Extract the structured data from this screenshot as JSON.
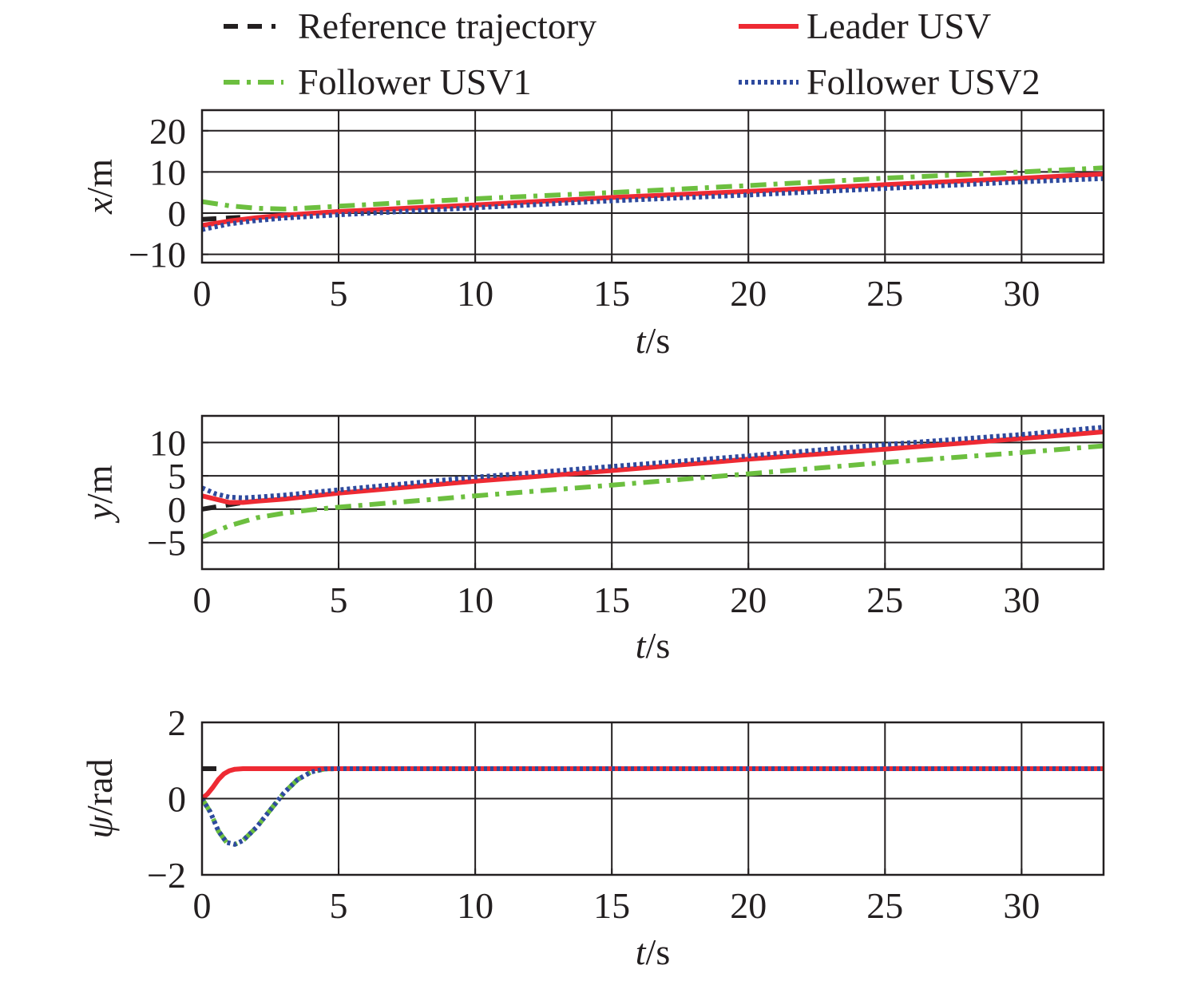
{
  "legend": [
    {
      "key": "reference",
      "label": "Reference trajectory",
      "color": "#231f20",
      "style": "dashed"
    },
    {
      "key": "leader",
      "label": "Leader USV",
      "color": "#ee2a33",
      "style": "solid"
    },
    {
      "key": "follower1",
      "label": "Follower USV1",
      "color": "#6cbf3f",
      "style": "dashdot"
    },
    {
      "key": "follower2",
      "label": "Follower USV2",
      "color": "#2e4a9e",
      "style": "dotted"
    }
  ],
  "chart_data": [
    {
      "type": "line",
      "ylabel_var": "x",
      "ylabel_unit": "/m",
      "xlabel_var": "t",
      "xlabel_unit": "/s",
      "xlim": [
        0,
        33
      ],
      "ylim": [
        -12,
        25
      ],
      "xticks": [
        0,
        5,
        10,
        15,
        20,
        25,
        30
      ],
      "yticks": [
        20,
        10,
        0,
        -10
      ],
      "ytick_labels": [
        "20",
        "10",
        "0",
        "−10"
      ],
      "grid": true,
      "series": [
        {
          "name": "Reference trajectory",
          "x": [
            0,
            1.5
          ],
          "y": [
            -1.5,
            -1.0
          ]
        },
        {
          "name": "Leader USV",
          "x": [
            0,
            1,
            2,
            3,
            5,
            10,
            15,
            20,
            25,
            30,
            33
          ],
          "y": [
            -3,
            -1.9,
            -1.1,
            -0.5,
            0.4,
            2.0,
            3.8,
            5.3,
            6.9,
            8.5,
            9.5
          ]
        },
        {
          "name": "Follower USV1",
          "x": [
            0,
            1,
            2,
            3,
            4,
            5,
            10,
            15,
            20,
            25,
            30,
            33
          ],
          "y": [
            2.8,
            1.8,
            1.2,
            1.0,
            1.3,
            1.7,
            3.5,
            5.0,
            6.7,
            8.5,
            10.0,
            11.0
          ]
        },
        {
          "name": "Follower USV2",
          "x": [
            0,
            1,
            2,
            3,
            5,
            10,
            15,
            20,
            25,
            30,
            33
          ],
          "y": [
            -4,
            -2.6,
            -1.8,
            -1.2,
            -0.4,
            1.3,
            3.0,
            4.4,
            6.0,
            7.6,
            8.4
          ]
        }
      ]
    },
    {
      "type": "line",
      "ylabel_var": "y",
      "ylabel_unit": "/m",
      "xlabel_var": "t",
      "xlabel_unit": "/s",
      "xlim": [
        0,
        33
      ],
      "ylim": [
        -9,
        14
      ],
      "xticks": [
        0,
        5,
        10,
        15,
        20,
        25,
        30
      ],
      "yticks": [
        10,
        5,
        0,
        -5
      ],
      "ytick_labels": [
        "10",
        "5",
        "0",
        "−5"
      ],
      "grid": true,
      "series": [
        {
          "name": "Reference trajectory",
          "x": [
            0,
            1.5
          ],
          "y": [
            0,
            1.0
          ]
        },
        {
          "name": "Leader USV",
          "x": [
            0,
            0.5,
            1,
            1.5,
            2,
            3,
            5,
            10,
            15,
            20,
            25,
            30,
            33
          ],
          "y": [
            2.0,
            1.5,
            1.0,
            1.0,
            1.2,
            1.5,
            2.4,
            4.2,
            5.8,
            7.5,
            9.0,
            10.6,
            11.6
          ]
        },
        {
          "name": "Follower USV1",
          "x": [
            0,
            1,
            2,
            3,
            4,
            5,
            10,
            15,
            20,
            25,
            30,
            33
          ],
          "y": [
            -4.2,
            -2.5,
            -1.3,
            -0.6,
            -0.1,
            0.3,
            2.0,
            3.6,
            5.3,
            7.0,
            8.5,
            9.5
          ]
        },
        {
          "name": "Follower USV2",
          "x": [
            0,
            0.5,
            1,
            1.5,
            2,
            3,
            5,
            10,
            15,
            20,
            25,
            30,
            33
          ],
          "y": [
            3.2,
            2.3,
            1.8,
            1.7,
            1.8,
            2.1,
            2.9,
            4.8,
            6.4,
            8.0,
            9.7,
            11.2,
            12.3
          ]
        }
      ]
    },
    {
      "type": "line",
      "ylabel_var": "ψ",
      "ylabel_unit": "/rad",
      "xlabel_var": "t",
      "xlabel_unit": "/s",
      "xlim": [
        0,
        33
      ],
      "ylim": [
        -2,
        2
      ],
      "xticks": [
        0,
        5,
        10,
        15,
        20,
        25,
        30
      ],
      "yticks": [
        2,
        0,
        -2
      ],
      "ytick_labels": [
        "2",
        "0",
        "−2"
      ],
      "grid": true,
      "series": [
        {
          "name": "Reference trajectory",
          "x": [
            0,
            0.6
          ],
          "y": [
            0.785,
            0.785
          ]
        },
        {
          "name": "Leader USV",
          "x": [
            0,
            0.2,
            0.4,
            0.6,
            0.8,
            1.0,
            1.2,
            1.5,
            2,
            3,
            5,
            10,
            15,
            20,
            25,
            30,
            33
          ],
          "y": [
            0,
            0.12,
            0.3,
            0.5,
            0.65,
            0.73,
            0.77,
            0.785,
            0.785,
            0.785,
            0.785,
            0.785,
            0.785,
            0.785,
            0.785,
            0.785,
            0.785
          ]
        },
        {
          "name": "Follower USV1",
          "x": [
            0,
            0.3,
            0.6,
            0.9,
            1.2,
            1.5,
            2.0,
            2.5,
            3.0,
            3.5,
            4.0,
            4.5,
            5,
            10,
            15,
            20,
            25,
            30,
            33
          ],
          "y": [
            0,
            -0.35,
            -0.85,
            -1.15,
            -1.2,
            -1.1,
            -0.75,
            -0.3,
            0.15,
            0.5,
            0.7,
            0.78,
            0.785,
            0.785,
            0.785,
            0.785,
            0.785,
            0.785,
            0.785
          ]
        },
        {
          "name": "Follower USV2",
          "x": [
            0,
            0.3,
            0.6,
            0.9,
            1.2,
            1.5,
            2.0,
            2.5,
            3.0,
            3.5,
            4.0,
            4.5,
            5,
            10,
            15,
            20,
            25,
            30,
            33
          ],
          "y": [
            0,
            -0.35,
            -0.85,
            -1.15,
            -1.2,
            -1.1,
            -0.75,
            -0.3,
            0.15,
            0.5,
            0.7,
            0.78,
            0.785,
            0.785,
            0.785,
            0.785,
            0.785,
            0.785,
            0.785
          ]
        }
      ]
    }
  ]
}
